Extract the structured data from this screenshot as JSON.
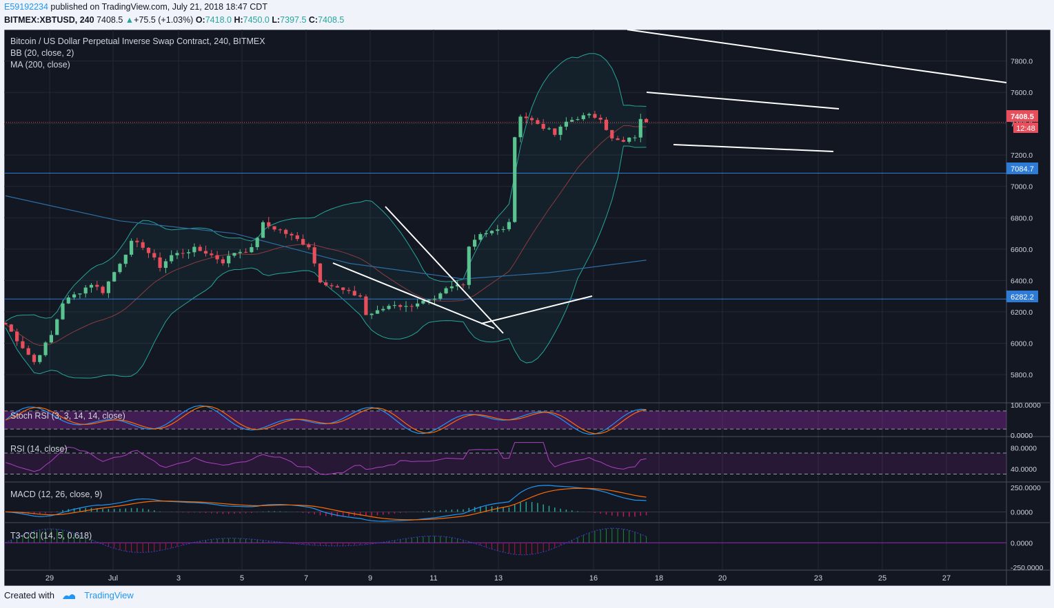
{
  "header": {
    "user": "E59192234",
    "published": " published on TradingView.com, July 21, 2018 18:47 CDT",
    "symbol": "BITMEX:XBTUSD, 240",
    "last": "7408.5",
    "change": "+75.5 (+1.03%)",
    "o_label": "O:",
    "o": "7418.0",
    "h_label": "H:",
    "h": "7450.0",
    "l_label": "L:",
    "l": "7397.5",
    "c_label": "C:",
    "c": "7408.5"
  },
  "legend": {
    "title": "Bitcoin / US Dollar Perpetual Inverse Swap Contract, 240, BITMEX",
    "bb": "BB (20, close, 2)",
    "ma": "MA (200, close)"
  },
  "badges": {
    "price": "7408.5",
    "timer": "12:48",
    "level1": "7084.7",
    "level2": "6282.2"
  },
  "indicators": {
    "stoch": "Stoch RSI (3, 3, 14, 14, close)",
    "rsi": "RSI (14, close)",
    "macd": "MACD (12, 26, close, 9)",
    "cci": "T3-CCI (14, 5, 0.618)"
  },
  "footer": {
    "created": "Created with",
    "brand": "TradingView"
  },
  "colors": {
    "bg": "#131722",
    "up": "#5ac38f",
    "down": "#e84f5c",
    "bb": "#26a69a",
    "ma": "#2c6ea5",
    "rsi": "#9c27b0",
    "macd": "#2196f3",
    "signal": "#ff6d00"
  },
  "chart_data": [
    {
      "type": "candlestick",
      "title": "Bitcoin / US Dollar Perpetual Inverse Swap Contract, 240, BITMEX",
      "x_ticks": [
        "29",
        "Jul",
        "3",
        "5",
        "7",
        "9",
        "11",
        "13",
        "16",
        "18",
        "20",
        "23",
        "25",
        "27"
      ],
      "y_ticks": [
        "7800.0",
        "7600.0",
        "7400.0",
        "7200.0",
        "7000.0",
        "6800.0",
        "6600.0",
        "6400.0",
        "6200.0",
        "6000.0",
        "5800.0"
      ],
      "ylim": [
        5620,
        8000
      ],
      "horizontal_levels": [
        7084.7,
        6282.2
      ],
      "close_points": [
        [
          0,
          6120
        ],
        [
          5,
          5880
        ],
        [
          8,
          6050
        ],
        [
          10,
          6260
        ],
        [
          13,
          6330
        ],
        [
          15,
          6380
        ],
        [
          17,
          6330
        ],
        [
          22,
          6640
        ],
        [
          24,
          6620
        ],
        [
          27,
          6490
        ],
        [
          29,
          6560
        ],
        [
          33,
          6600
        ],
        [
          35,
          6580
        ],
        [
          38,
          6520
        ],
        [
          40,
          6580
        ],
        [
          43,
          6600
        ],
        [
          45,
          6760
        ],
        [
          48,
          6720
        ],
        [
          50,
          6680
        ],
        [
          53,
          6620
        ],
        [
          55,
          6400
        ],
        [
          58,
          6350
        ],
        [
          60,
          6320
        ],
        [
          62,
          6300
        ],
        [
          63,
          6180
        ],
        [
          65,
          6200
        ],
        [
          67,
          6240
        ],
        [
          68,
          6250
        ],
        [
          70,
          6230
        ],
        [
          72,
          6260
        ],
        [
          75,
          6270
        ],
        [
          77,
          6340
        ],
        [
          79,
          6370
        ],
        [
          80,
          6370
        ],
        [
          81,
          6630
        ],
        [
          83,
          6700
        ],
        [
          85,
          6720
        ],
        [
          87,
          6720
        ],
        [
          88,
          6780
        ],
        [
          89,
          7300
        ],
        [
          90,
          7460
        ],
        [
          92,
          7420
        ],
        [
          94,
          7380
        ],
        [
          96,
          7330
        ],
        [
          98,
          7410
        ],
        [
          100,
          7440
        ],
        [
          102,
          7450
        ],
        [
          104,
          7440
        ],
        [
          106,
          7300
        ],
        [
          108,
          7280
        ],
        [
          110,
          7320
        ],
        [
          111,
          7420
        ],
        [
          112,
          7408.5
        ]
      ]
    },
    {
      "type": "line",
      "title": "Stoch RSI (3, 3, 14, 14, close)",
      "y_ticks": [
        "100.0000",
        "0.0000"
      ],
      "ylim": [
        -5,
        105
      ]
    },
    {
      "type": "line",
      "title": "RSI (14, close)",
      "y_ticks": [
        "80.0000",
        "40.0000"
      ],
      "ylim": [
        15,
        100
      ]
    },
    {
      "type": "line",
      "title": "MACD (12, 26, close, 9)",
      "y_ticks": [
        "250.0000",
        "0.0000"
      ],
      "ylim": [
        -110,
        300
      ]
    },
    {
      "type": "bar",
      "title": "T3-CCI (14, 5, 0.618)",
      "y_ticks": [
        "0.0000",
        "-250.0000"
      ],
      "ylim": [
        -280,
        200
      ]
    }
  ]
}
